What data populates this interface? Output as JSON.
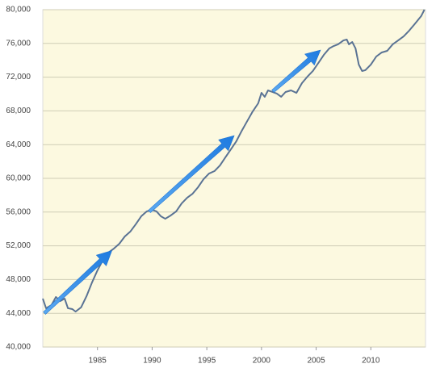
{
  "chart_data": {
    "type": "line",
    "x": [
      1980.0,
      1980.3,
      1980.8,
      1981.2,
      1981.6,
      1982.0,
      1982.3,
      1982.7,
      1983.0,
      1983.5,
      1984.0,
      1984.5,
      1985.0,
      1985.5,
      1986.0,
      1986.5,
      1987.0,
      1987.5,
      1988.0,
      1988.5,
      1989.0,
      1989.5,
      1990.0,
      1990.4,
      1990.8,
      1991.2,
      1991.7,
      1992.2,
      1992.7,
      1993.2,
      1993.7,
      1994.2,
      1994.7,
      1995.2,
      1995.7,
      1996.2,
      1996.7,
      1997.2,
      1997.7,
      1998.2,
      1998.7,
      1999.2,
      1999.7,
      2000.0,
      2000.3,
      2000.6,
      2001.0,
      2001.4,
      2001.8,
      2002.2,
      2002.7,
      2003.2,
      2003.7,
      2004.2,
      2004.7,
      2005.2,
      2005.7,
      2006.2,
      2006.6,
      2007.0,
      2007.5,
      2007.8,
      2008.0,
      2008.3,
      2008.6,
      2008.9,
      2009.2,
      2009.5,
      2010.0,
      2010.5,
      2011.0,
      2011.5,
      2012.0,
      2012.5,
      2013.0,
      2013.5,
      2014.0,
      2014.3,
      2014.6,
      2014.9
    ],
    "values": [
      45740,
      44600,
      44980,
      45930,
      45450,
      45740,
      44600,
      44500,
      44200,
      44700,
      46030,
      47650,
      49090,
      50330,
      51200,
      51670,
      52250,
      53110,
      53680,
      54550,
      55500,
      56080,
      56270,
      56080,
      55500,
      55210,
      55600,
      56080,
      57030,
      57700,
      58180,
      58950,
      59900,
      60570,
      60860,
      61530,
      62490,
      63440,
      64400,
      65650,
      66800,
      67940,
      68900,
      70140,
      69670,
      70430,
      70240,
      70050,
      69670,
      70240,
      70430,
      70140,
      71290,
      72060,
      72730,
      73680,
      74640,
      75410,
      75690,
      75890,
      76360,
      76460,
      75890,
      76170,
      75410,
      73490,
      72730,
      72830,
      73490,
      74450,
      74930,
      75120,
      75890,
      76360,
      76840,
      77510,
      78280,
      78760,
      79230,
      80000
    ],
    "color": "#5a7394",
    "xlim": [
      1980,
      2015
    ],
    "xticks": [
      1985,
      1990,
      1995,
      2000,
      2005,
      2010
    ],
    "ylim": [
      40000,
      80000
    ],
    "yticks": [
      {
        "value": 40000,
        "label": "40,000"
      },
      {
        "value": 44000,
        "label": "44,000"
      },
      {
        "value": 48000,
        "label": "48,000"
      },
      {
        "value": 52000,
        "label": "52,000"
      },
      {
        "value": 56000,
        "label": "56,000"
      },
      {
        "value": 60000,
        "label": "60,000"
      },
      {
        "value": 64000,
        "label": "64,000"
      },
      {
        "value": 68000,
        "label": "68,000"
      },
      {
        "value": 72000,
        "label": "72,000"
      },
      {
        "value": 76000,
        "label": "76,000"
      },
      {
        "value": 80000,
        "label": "80,000"
      }
    ],
    "grid": true
  }
}
